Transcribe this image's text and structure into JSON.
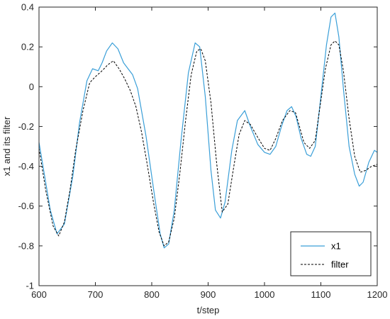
{
  "chart_data": {
    "type": "line",
    "title": "",
    "xlabel": "t/step",
    "ylabel": "x1 and its filter",
    "xlim": [
      600,
      1200
    ],
    "ylim": [
      -1,
      0.4
    ],
    "xticks": [
      600,
      700,
      800,
      900,
      1000,
      1100,
      1200
    ],
    "yticks": [
      -1,
      -0.8,
      -0.6,
      -0.4,
      -0.2,
      0,
      0.2,
      0.4
    ],
    "xtick_labels": [
      "600",
      "700",
      "800",
      "900",
      "1000",
      "1100",
      "1200"
    ],
    "ytick_labels": [
      "-1",
      "-0.8",
      "-0.6",
      "-0.4",
      "-0.2",
      "0",
      "0.2",
      "0.4"
    ],
    "grid": false,
    "legend_position": "bottom-right",
    "series": [
      {
        "name": "x1",
        "color": "#3a9fd8",
        "style": "solid",
        "x": [
          600,
          610,
          620,
          632,
          645,
          660,
          672,
          685,
          695,
          705,
          712,
          720,
          730,
          740,
          750,
          758,
          766,
          775,
          790,
          805,
          815,
          822,
          830,
          840,
          852,
          865,
          877,
          885,
          895,
          905,
          913,
          922,
          930,
          942,
          952,
          965,
          975,
          988,
          1000,
          1010,
          1020,
          1030,
          1040,
          1048,
          1056,
          1065,
          1075,
          1082,
          1090,
          1100,
          1110,
          1118,
          1125,
          1132,
          1140,
          1150,
          1160,
          1168,
          1175,
          1185,
          1195,
          1200
        ],
        "y": [
          -0.28,
          -0.45,
          -0.62,
          -0.74,
          -0.69,
          -0.45,
          -0.18,
          0.03,
          0.09,
          0.08,
          0.12,
          0.18,
          0.22,
          0.19,
          0.12,
          0.09,
          0.06,
          -0.01,
          -0.25,
          -0.55,
          -0.74,
          -0.81,
          -0.79,
          -0.62,
          -0.27,
          0.07,
          0.22,
          0.2,
          -0.05,
          -0.42,
          -0.62,
          -0.66,
          -0.58,
          -0.32,
          -0.17,
          -0.12,
          -0.2,
          -0.29,
          -0.33,
          -0.34,
          -0.3,
          -0.2,
          -0.12,
          -0.1,
          -0.15,
          -0.26,
          -0.34,
          -0.35,
          -0.3,
          -0.05,
          0.21,
          0.35,
          0.37,
          0.25,
          -0.01,
          -0.3,
          -0.44,
          -0.5,
          -0.48,
          -0.38,
          -0.32,
          -0.33
        ]
      },
      {
        "name": "filter",
        "color": "#000000",
        "style": "dashed",
        "x": [
          600,
          612,
          625,
          635,
          645,
          655,
          665,
          678,
          690,
          700,
          712,
          722,
          732,
          742,
          752,
          762,
          772,
          782,
          792,
          803,
          813,
          822,
          830,
          840,
          850,
          860,
          870,
          880,
          887,
          895,
          905,
          915,
          925,
          935,
          945,
          955,
          965,
          975,
          987,
          1000,
          1010,
          1020,
          1032,
          1045,
          1055,
          1062,
          1070,
          1080,
          1090,
          1098,
          1108,
          1118,
          1125,
          1132,
          1140,
          1150,
          1160,
          1170,
          1180,
          1190,
          1200
        ],
        "y": [
          -0.31,
          -0.52,
          -0.7,
          -0.75,
          -0.68,
          -0.52,
          -0.32,
          -0.12,
          0.02,
          0.05,
          0.08,
          0.11,
          0.13,
          0.09,
          0.04,
          -0.02,
          -0.1,
          -0.23,
          -0.39,
          -0.58,
          -0.73,
          -0.8,
          -0.78,
          -0.66,
          -0.43,
          -0.17,
          0.06,
          0.18,
          0.19,
          0.13,
          -0.08,
          -0.38,
          -0.63,
          -0.59,
          -0.41,
          -0.24,
          -0.17,
          -0.19,
          -0.25,
          -0.31,
          -0.32,
          -0.26,
          -0.17,
          -0.12,
          -0.13,
          -0.2,
          -0.28,
          -0.31,
          -0.27,
          -0.11,
          0.09,
          0.21,
          0.23,
          0.21,
          0.08,
          -0.16,
          -0.35,
          -0.43,
          -0.42,
          -0.4,
          -0.39
        ]
      }
    ]
  }
}
